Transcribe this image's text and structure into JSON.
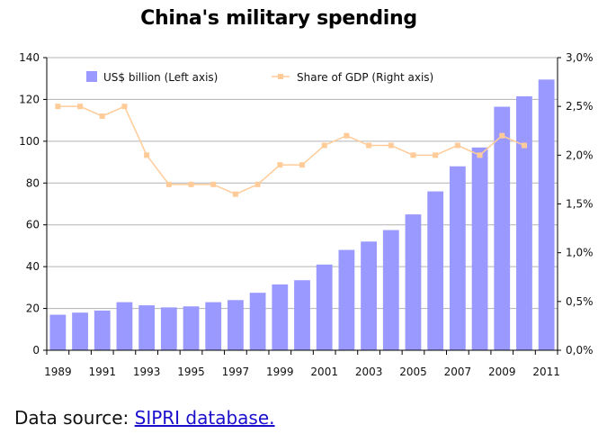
{
  "chart_data": {
    "type": "bar",
    "title": "China's military spending",
    "x": [
      1989,
      1990,
      1991,
      1992,
      1993,
      1994,
      1995,
      1996,
      1997,
      1998,
      1999,
      2000,
      2001,
      2002,
      2003,
      2004,
      2005,
      2006,
      2007,
      2008,
      2009,
      2010,
      2011
    ],
    "x_tick_labels": [
      "1989",
      "1991",
      "1993",
      "1995",
      "1997",
      "1999",
      "2001",
      "2003",
      "2005",
      "2007",
      "2009",
      "2011"
    ],
    "series": [
      {
        "name": "US$ billion (Left axis)",
        "type": "bar",
        "axis": "left",
        "color": "#9999ff",
        "values": [
          17,
          18,
          19,
          23,
          21.5,
          20.5,
          21,
          23,
          24,
          27.5,
          31.5,
          33.5,
          41,
          48,
          52,
          57.5,
          65,
          76,
          88,
          97,
          116.5,
          121.5,
          129.5
        ]
      },
      {
        "name": "Share of GDP (Right axis)",
        "type": "line",
        "axis": "right",
        "color": "#ffcc99",
        "values": [
          2.5,
          2.5,
          2.4,
          2.5,
          2.0,
          1.7,
          1.7,
          1.7,
          1.6,
          1.7,
          1.9,
          1.9,
          2.1,
          2.2,
          2.1,
          2.1,
          2.0,
          2.0,
          2.1,
          2.0,
          2.2,
          2.1,
          null
        ]
      }
    ],
    "ylim_left": [
      0,
      140
    ],
    "y_ticks_left": [
      "0",
      "20",
      "40",
      "60",
      "80",
      "100",
      "120",
      "140"
    ],
    "ylim_right": [
      0,
      3.0
    ],
    "y_ticks_right": [
      "0,0%",
      "0,5%",
      "1,0%",
      "1,5%",
      "2,0%",
      "2,5%",
      "3,0%"
    ],
    "grid": true,
    "legend_position": "top-left"
  },
  "footer": {
    "prefix": "Data source: ",
    "link_text": "SIPRI database."
  },
  "colors": {
    "bar": "#9999ff",
    "line": "#ffcc99",
    "grid": "#b3b3b3",
    "link": "#1a0dcc"
  }
}
